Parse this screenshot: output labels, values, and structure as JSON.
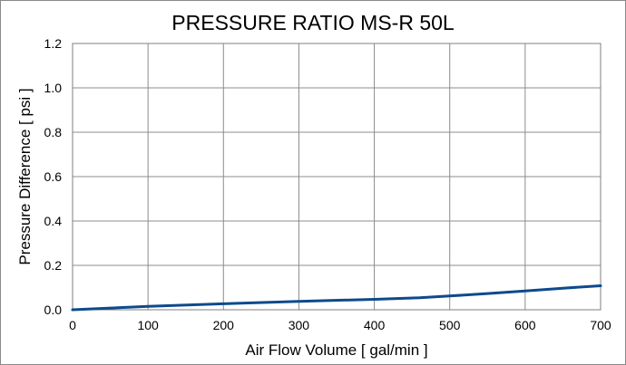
{
  "chart_data": {
    "type": "line",
    "title": "PRESSURE RATIO MS-R 50L",
    "xlabel": "Air Flow Volume [ gal/min ]",
    "ylabel": "Pressure Difference [ psi ]",
    "xlim": [
      0,
      700
    ],
    "ylim": [
      0,
      1.2
    ],
    "x_ticks": [
      "0",
      "100",
      "200",
      "300",
      "400",
      "500",
      "600",
      "700"
    ],
    "y_ticks": [
      "0.0",
      "0.2",
      "0.4",
      "0.6",
      "0.8",
      "1.0",
      "1.2"
    ],
    "grid": true,
    "legend": "none",
    "series": [
      {
        "color": "#0d4a8c",
        "x": [
          0,
          100,
          200,
          300,
          400,
          460,
          500,
          550,
          600,
          650,
          700
        ],
        "y": [
          0.0,
          0.015,
          0.027,
          0.038,
          0.047,
          0.054,
          0.062,
          0.073,
          0.085,
          0.097,
          0.108
        ]
      }
    ]
  }
}
